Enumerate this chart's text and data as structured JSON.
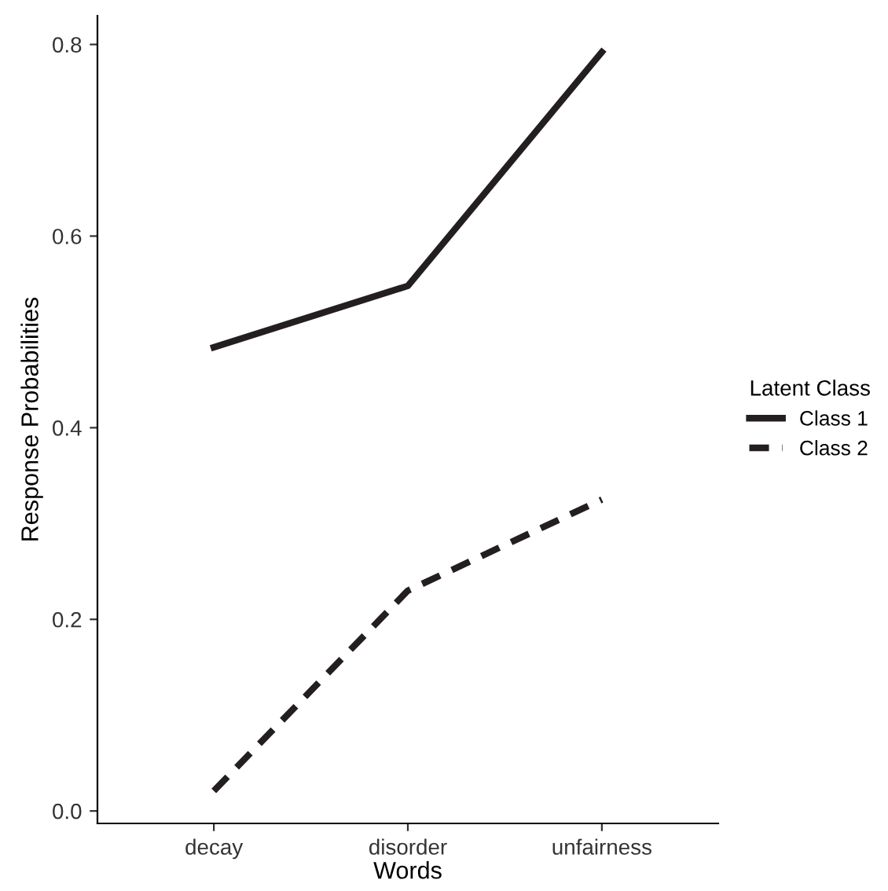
{
  "chart_data": {
    "type": "line",
    "xlabel": "Words",
    "ylabel": "Response Probabilities",
    "legend_title": "Latent Class",
    "legend": "right",
    "categories": [
      "decay",
      "disorder",
      "unfairness"
    ],
    "series": [
      {
        "name": "Class 1",
        "color": "#231f20",
        "line_style": "solid",
        "values": [
          0.484,
          0.548,
          0.792
        ]
      },
      {
        "name": "Class 2",
        "color": "#231f20",
        "line_style": "dashed",
        "values": [
          0.021,
          0.23,
          0.325
        ]
      }
    ],
    "ylim": [
      -0.013,
      0.83
    ],
    "yticks": [
      {
        "value": 0,
        "label": "0.0"
      },
      {
        "value": 0.2,
        "label": "0.2"
      },
      {
        "value": 0.4,
        "label": "0.4"
      },
      {
        "value": 0.6,
        "label": "0.6"
      },
      {
        "value": 0.8,
        "label": "0.8"
      }
    ],
    "grid": false
  }
}
